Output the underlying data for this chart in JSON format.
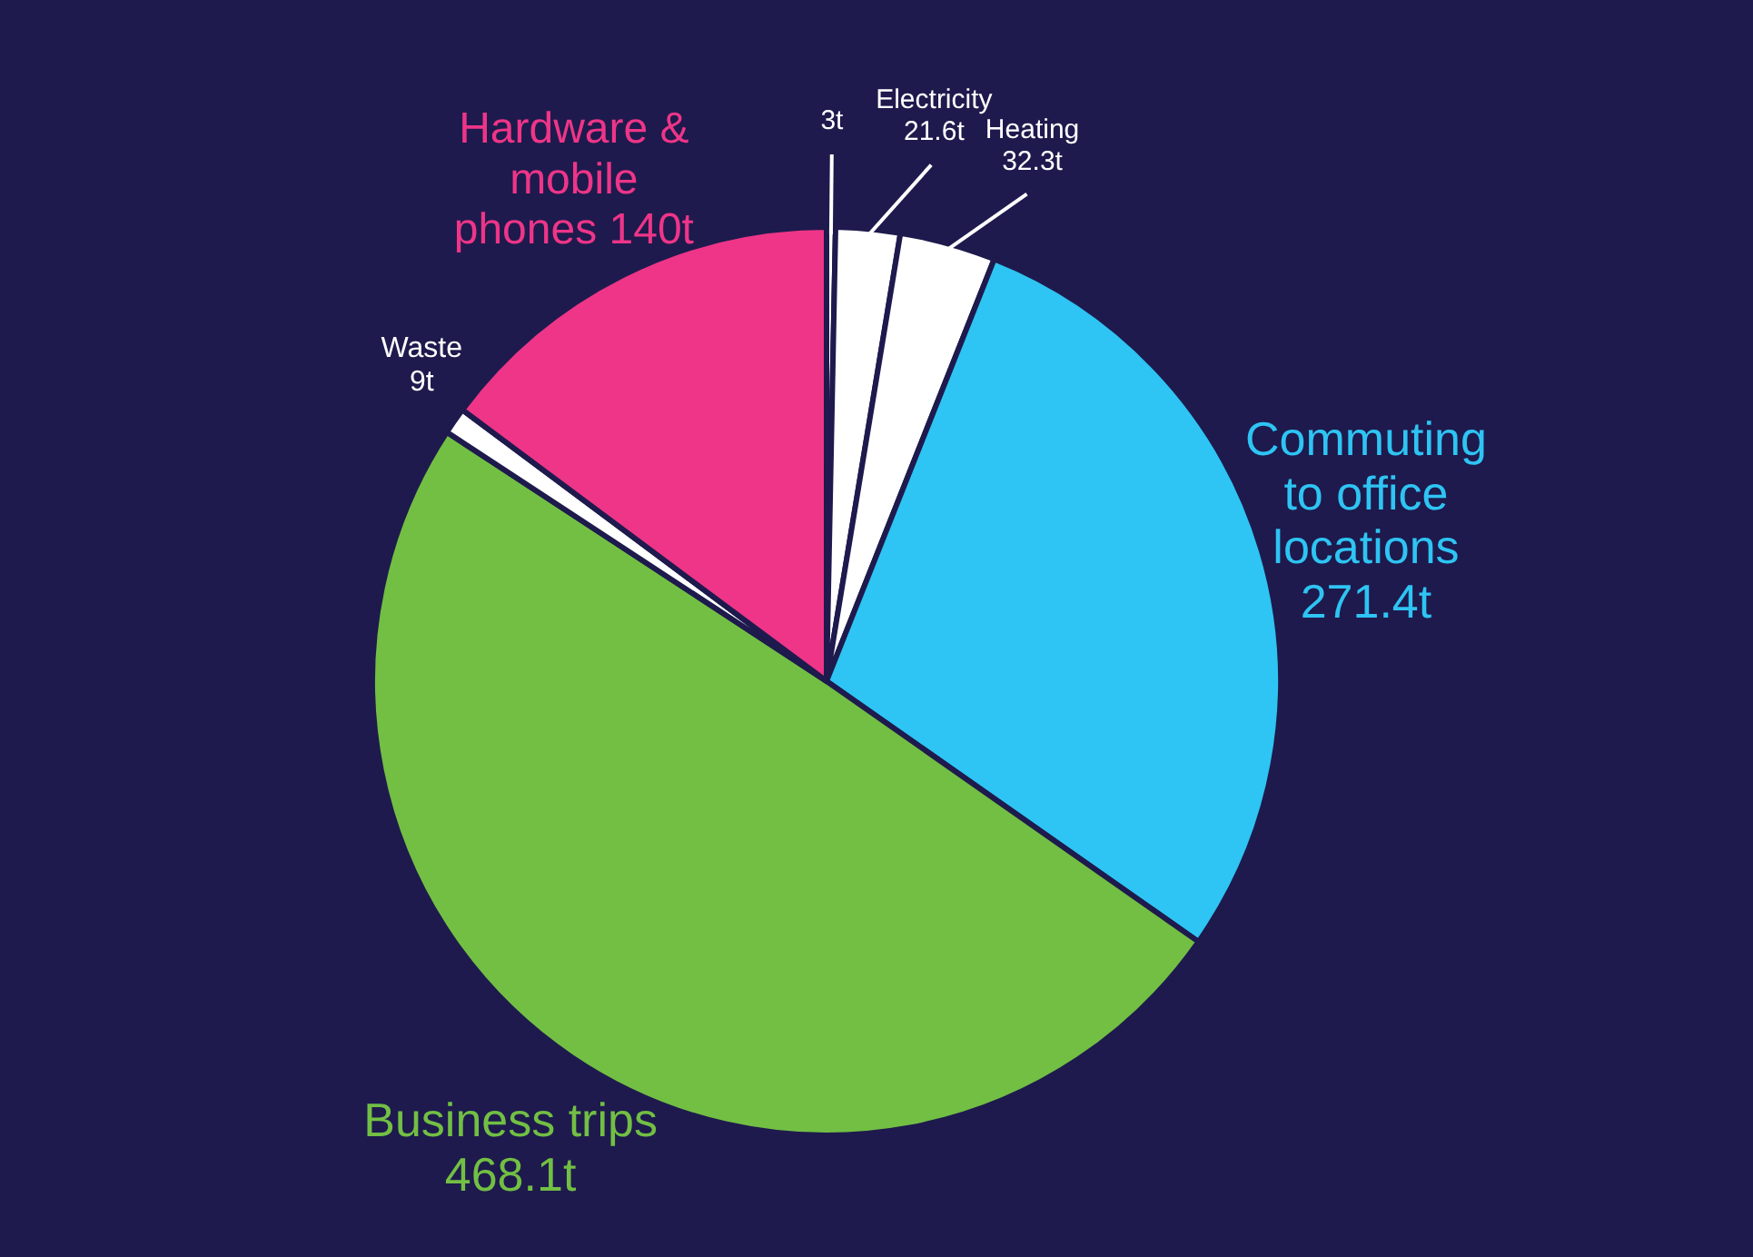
{
  "chart_data": {
    "type": "pie",
    "categories": [
      null,
      "Electricity",
      "Heating",
      "Commuting to office locations",
      "Business trips",
      "Waste",
      "Hardware & mobile phones"
    ],
    "values": [
      3,
      21.6,
      32.3,
      271.4,
      468.1,
      9,
      140
    ],
    "value_labels": [
      "3t",
      "21.6t",
      "32.3t",
      "271.4t",
      "468.1t",
      "9t",
      "140t"
    ],
    "colors": [
      "#ffffff",
      "#ffffff",
      "#ffffff",
      "#2ec4f3",
      "#72bf44",
      "#ffffff",
      "#ee3588"
    ]
  }
}
